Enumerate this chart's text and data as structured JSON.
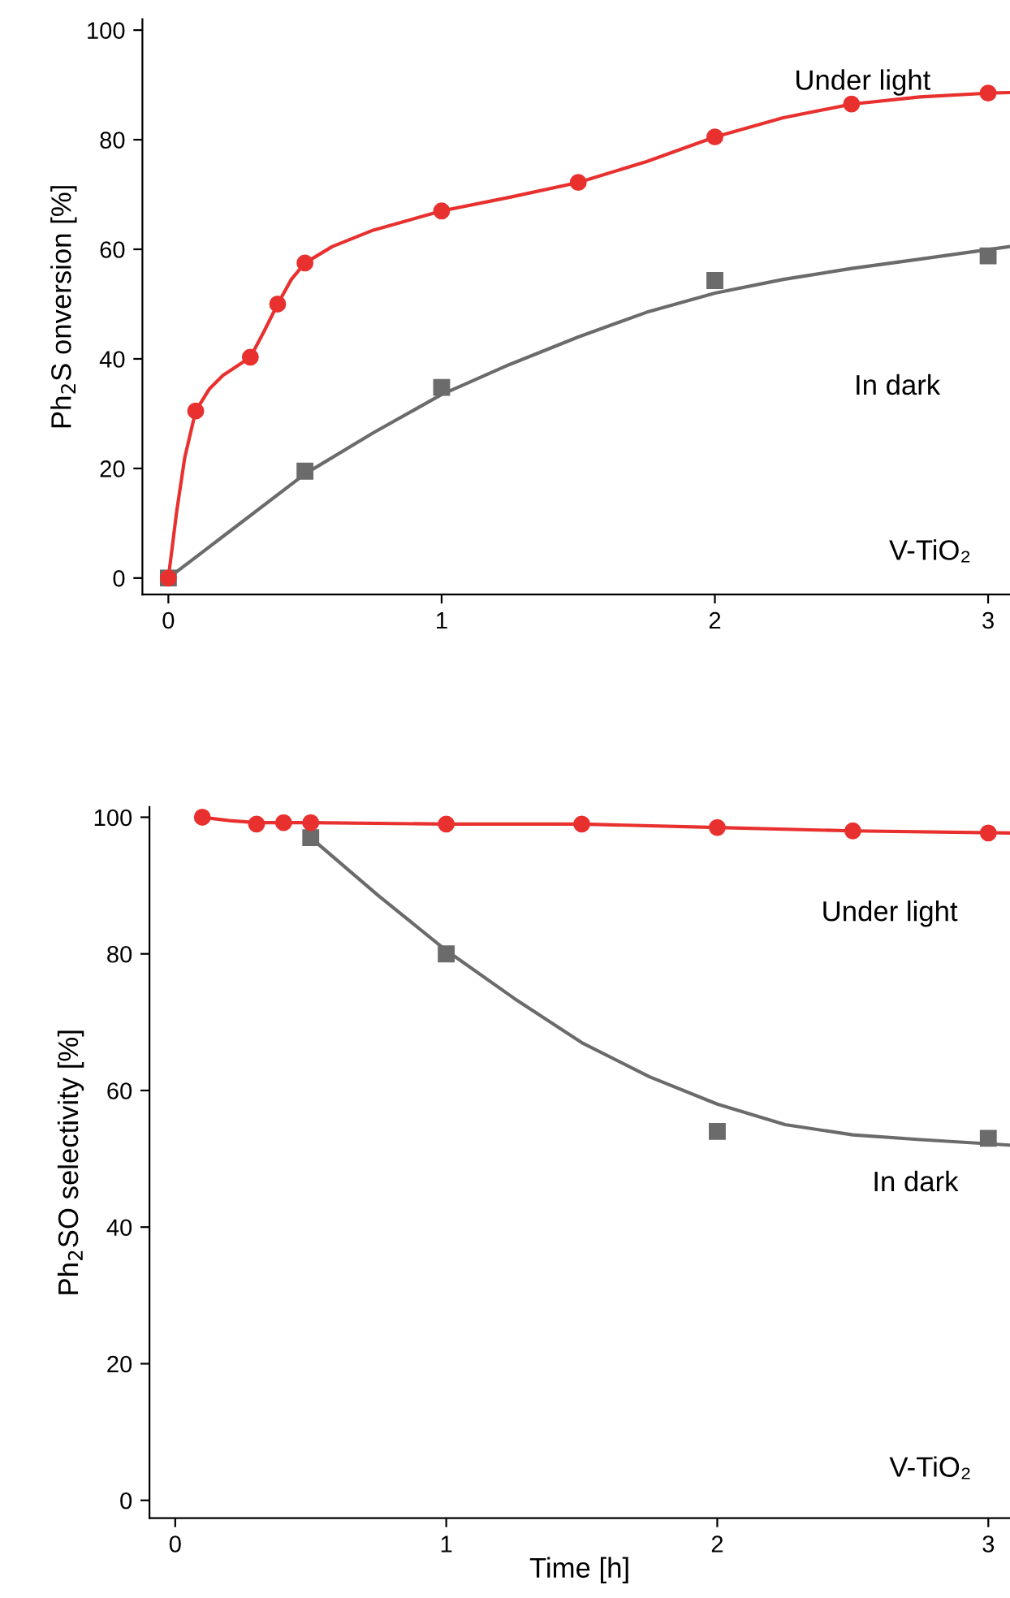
{
  "chart_data": [
    {
      "type": "line",
      "ylabel": "Ph$_{2}$S onversion [%]",
      "xlim": [
        -0.095,
        3.08
      ],
      "ylim": [
        -3,
        102
      ],
      "xticks": [
        0,
        1,
        2,
        3
      ],
      "yticks": [
        0,
        20,
        40,
        60,
        80,
        100
      ],
      "grid": false,
      "legend": false,
      "series": [
        {
          "type": "scatter",
          "color": "#e8312f",
          "marker": "circle",
          "x": [
            0,
            0.1,
            0.3,
            0.4,
            0.5,
            1,
            1.5,
            2,
            2.5,
            3
          ],
          "values": [
            0,
            30.5,
            40.3,
            50,
            57.5,
            67,
            72.2,
            80.5,
            86.5,
            88.5
          ]
        },
        {
          "color": "#e8312f",
          "x": [
            0,
            0.03,
            0.06,
            0.1,
            0.15,
            0.2,
            0.3,
            0.35,
            0.4,
            0.45,
            0.5,
            0.6,
            0.75,
            1,
            1.25,
            1.5,
            1.75,
            2,
            2.25,
            2.5,
            2.75,
            3,
            3.08
          ],
          "values": [
            0,
            12,
            22,
            30.5,
            34.5,
            37,
            40.3,
            45,
            50,
            54.5,
            57.5,
            60.5,
            63.5,
            67,
            69.5,
            72.2,
            76,
            80.5,
            84,
            86.5,
            87.8,
            88.5,
            88.6
          ]
        },
        {
          "type": "scatter",
          "color": "#6b6b6b",
          "marker": "square",
          "x": [
            0,
            0.5,
            1,
            2,
            3
          ],
          "values": [
            0,
            19.5,
            34.8,
            54.3,
            58.8
          ]
        },
        {
          "color": "#6b6b6b",
          "x": [
            0,
            0.25,
            0.5,
            0.75,
            1,
            1.25,
            1.5,
            1.75,
            2,
            2.25,
            2.5,
            2.75,
            3.08
          ],
          "values": [
            0,
            9.5,
            19,
            26.5,
            33.5,
            39,
            44,
            48.5,
            52,
            54.5,
            56.5,
            58.2,
            60.5
          ]
        }
      ],
      "annotations": [
        "Under light",
        "In dark",
        "V-TiO₂"
      ]
    },
    {
      "type": "line",
      "xlabel": "Time [h]",
      "ylabel": "Ph$_{2}$SO selectivity [%]",
      "xlim": [
        -0.095,
        3.08
      ],
      "ylim": [
        -2.6,
        101.5
      ],
      "xticks": [
        0,
        1,
        2,
        3
      ],
      "yticks": [
        0,
        20,
        40,
        60,
        80,
        100
      ],
      "grid": false,
      "legend": false,
      "series": [
        {
          "type": "scatter",
          "color": "#e8312f",
          "marker": "circle",
          "x": [
            0.1,
            0.3,
            0.4,
            0.5,
            1,
            1.5,
            2,
            2.5,
            3
          ],
          "values": [
            100,
            99,
            99.2,
            99.2,
            99,
            99,
            98.5,
            98,
            97.7
          ]
        },
        {
          "color": "#e8312f",
          "x": [
            0.1,
            0.2,
            0.3,
            0.5,
            1,
            1.5,
            2,
            2.5,
            3.08
          ],
          "values": [
            100,
            99.5,
            99.2,
            99.2,
            99,
            99,
            98.5,
            98,
            97.7
          ]
        },
        {
          "type": "scatter",
          "color": "#6b6b6b",
          "marker": "square",
          "x": [
            0.5,
            1,
            2,
            3
          ],
          "values": [
            97,
            80,
            54,
            53
          ]
        },
        {
          "color": "#6b6b6b",
          "x": [
            0.5,
            0.75,
            1,
            1.25,
            1.5,
            1.75,
            2,
            2.25,
            2.5,
            2.75,
            3.08
          ],
          "values": [
            97,
            88.5,
            80.5,
            73.5,
            67,
            62,
            58,
            55,
            53.5,
            52.8,
            52
          ]
        }
      ],
      "annotations": [
        "Under light",
        "In dark",
        "V-TiO₂"
      ]
    }
  ]
}
